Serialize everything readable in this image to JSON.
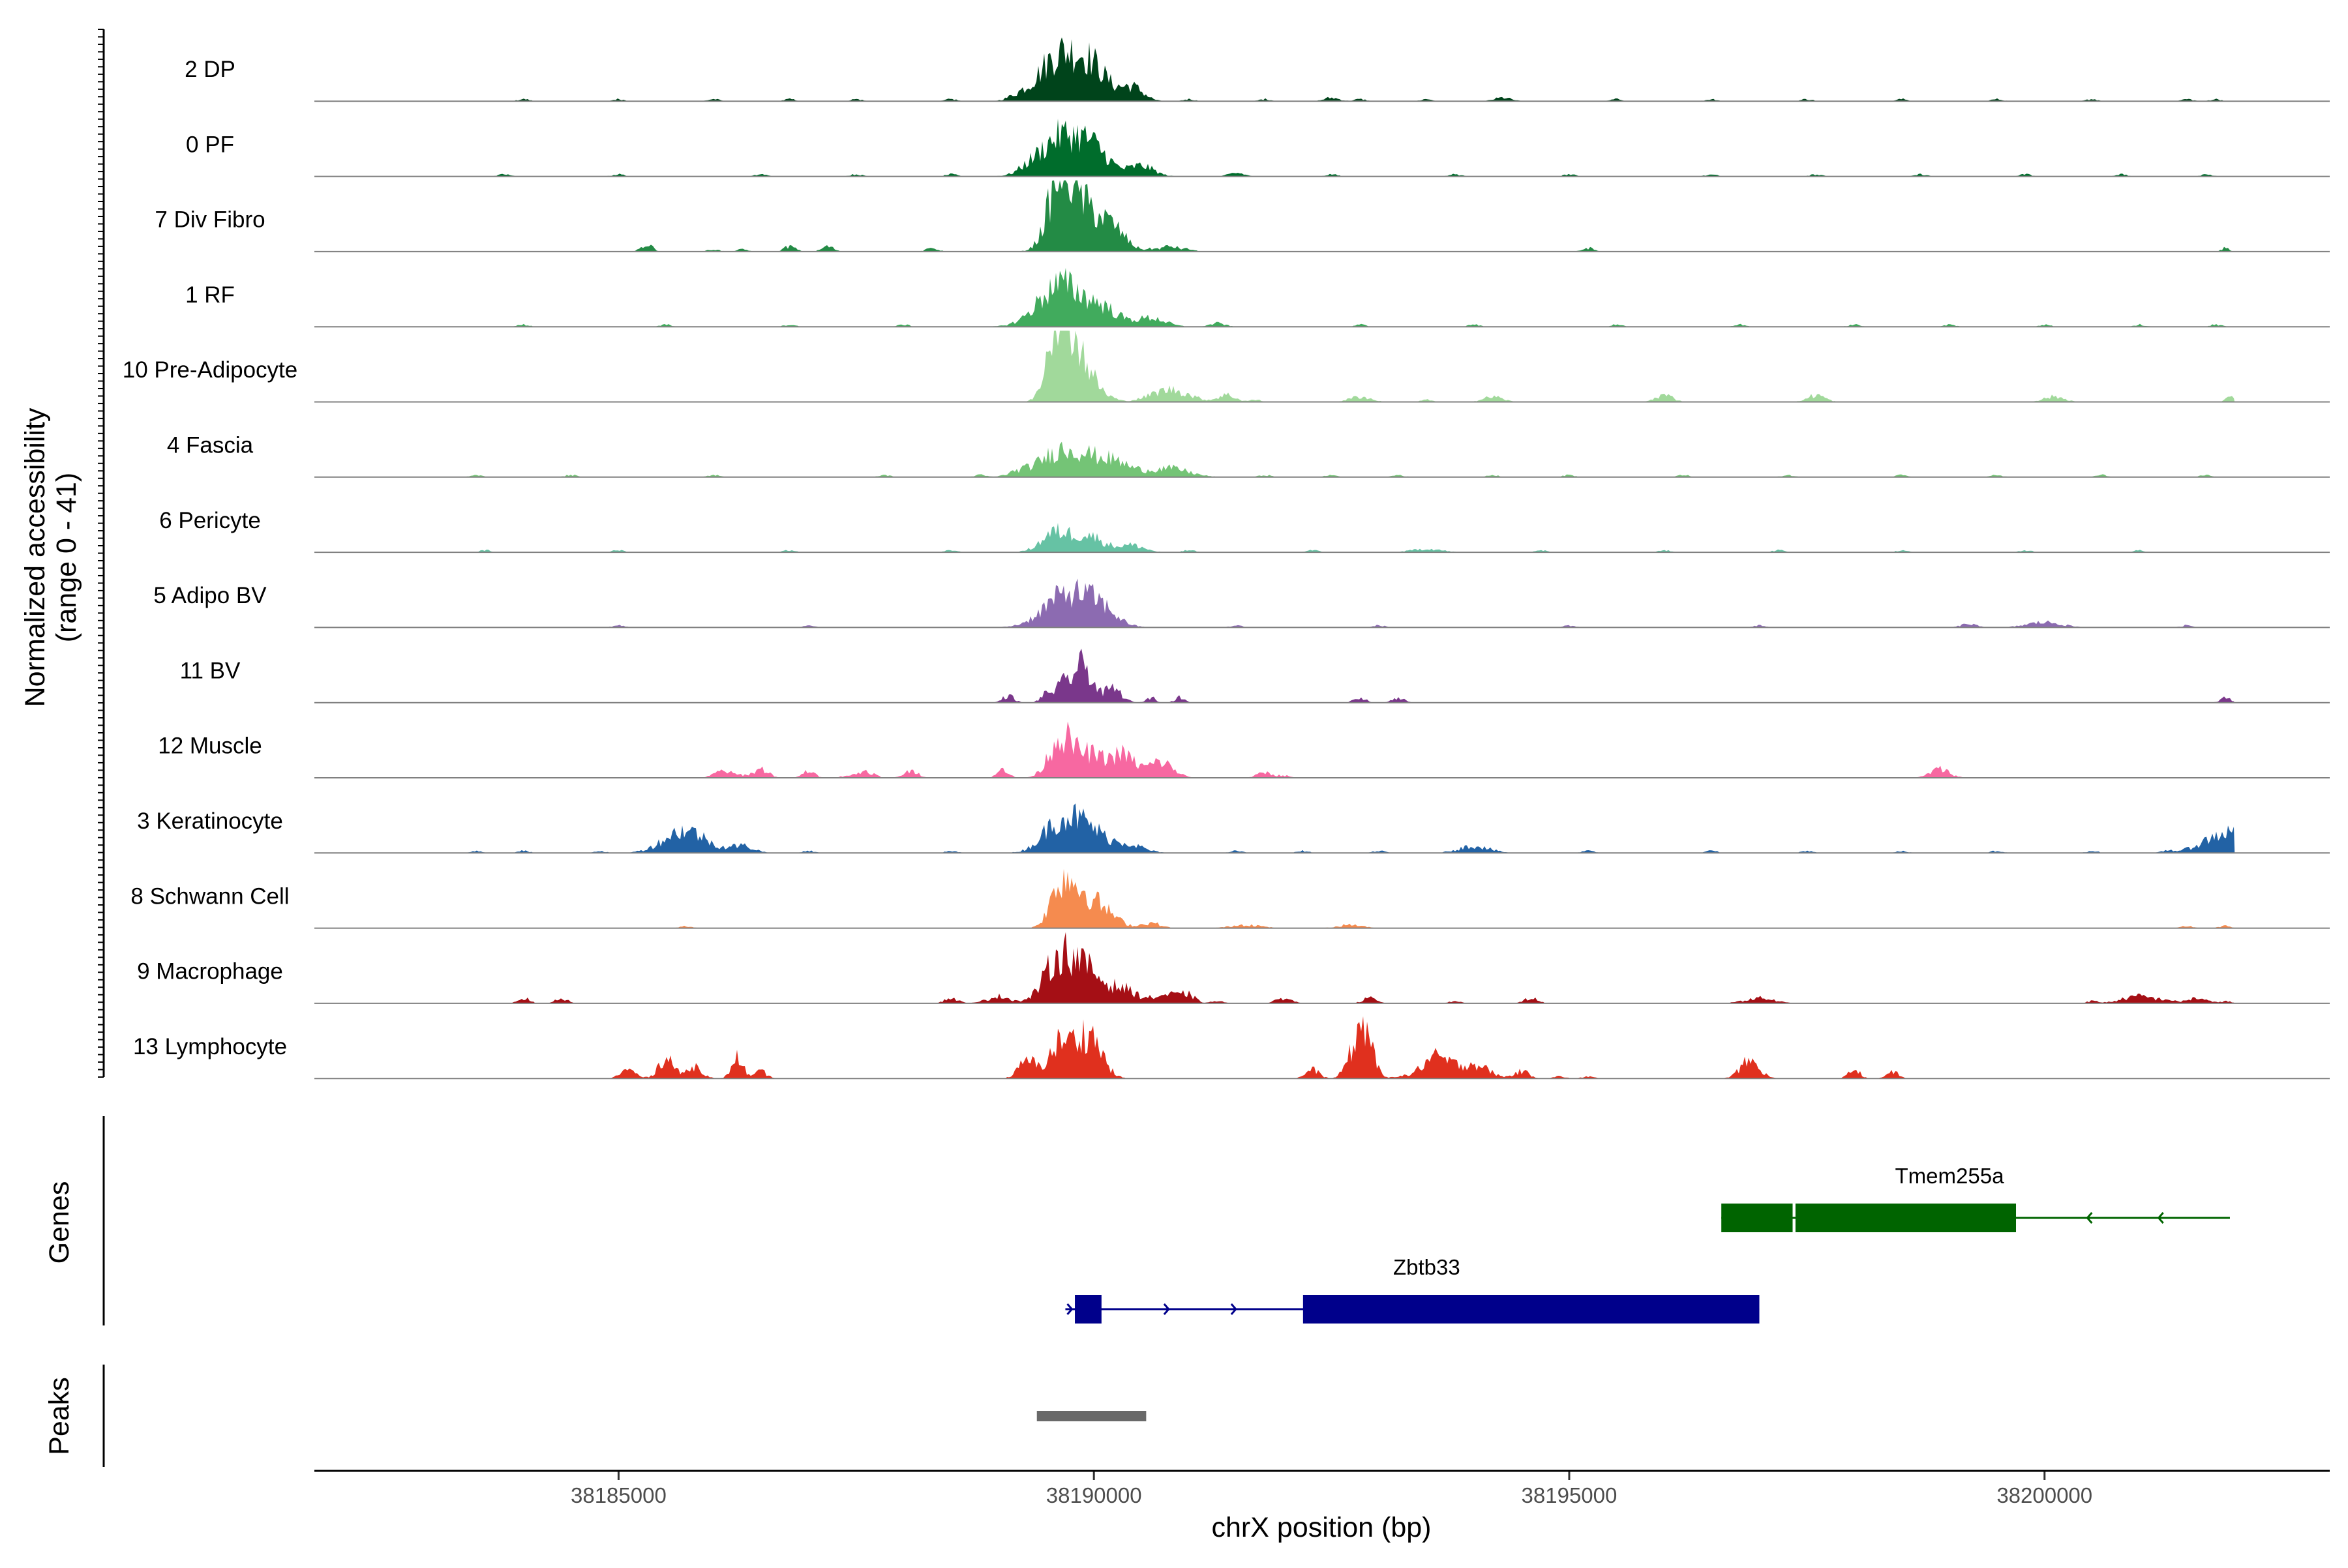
{
  "chart_data": {
    "type": "area",
    "subtype": "genome-coverage-tracks",
    "y_axis": {
      "title_line1": "Normalized accessibility",
      "title_line2": "(range 0 - 41)",
      "range": [
        0,
        41
      ]
    },
    "x_axis": {
      "title": "chrX position (bp)",
      "range": [
        38181800,
        38203000
      ],
      "ticks": [
        38185000,
        38190000,
        38195000,
        38200000
      ],
      "tick_labels": [
        "38185000",
        "38190000",
        "38195000",
        "38200000"
      ]
    },
    "baseline_color": "#808080",
    "tracks": [
      {
        "name": "2 DP",
        "color": "#00441b",
        "peaks": [
          [
            38189650,
            27,
            220
          ],
          [
            38190000,
            15,
            160
          ],
          [
            38190400,
            8,
            120
          ],
          [
            38189200,
            2,
            100
          ],
          [
            38192500,
            2,
            80
          ],
          [
            38194300,
            2,
            90
          ]
        ],
        "bumps": [
          [
            38184000,
            38185000,
            38186000,
            38186800,
            38187500,
            38188500,
            38191000,
            38191800,
            38192800,
            38193500,
            38195500,
            38196500,
            38197500,
            38198500,
            38199500,
            38200500,
            38201500,
            38201800
          ]
        ]
      },
      {
        "name": "0 PF",
        "color": "#006d2c",
        "peaks": [
          [
            38189650,
            22,
            220
          ],
          [
            38190000,
            13,
            170
          ],
          [
            38190500,
            6,
            130
          ],
          [
            38189300,
            2,
            100
          ],
          [
            38191500,
            2,
            80
          ]
        ],
        "bumps": [
          [
            38183800,
            38185000,
            38186500,
            38187500,
            38188500,
            38192500,
            38193800,
            38195000,
            38196500,
            38197600,
            38198700,
            38199800,
            38200800,
            38201700
          ]
        ]
      },
      {
        "name": "7 Div Fibro",
        "color": "#238b45",
        "peaks": [
          [
            38189650,
            40,
            130
          ],
          [
            38189900,
            22,
            160
          ],
          [
            38190200,
            12,
            140
          ],
          [
            38190800,
            3,
            90
          ],
          [
            38185300,
            4,
            60
          ],
          [
            38186800,
            3,
            60
          ],
          [
            38187200,
            3,
            60
          ],
          [
            38188300,
            2,
            60
          ],
          [
            38195200,
            2,
            60
          ],
          [
            38201900,
            2,
            40
          ]
        ],
        "bumps": [
          [
            38186000,
            38186300,
            38190600,
            38191000
          ]
        ]
      },
      {
        "name": "1 RF",
        "color": "#41ab5d",
        "peaks": [
          [
            38189650,
            24,
            230
          ],
          [
            38190100,
            9,
            170
          ],
          [
            38190600,
            5,
            150
          ],
          [
            38191300,
            2,
            80
          ]
        ],
        "bumps": [
          [
            38184000,
            38185500,
            38186800,
            38188000,
            38192800,
            38194000,
            38195500,
            38196800,
            38198000,
            38199000,
            38200000,
            38201000,
            38201800
          ]
        ]
      },
      {
        "name": "10 Pre-Adipocyte",
        "color": "#a1d99b",
        "peaks": [
          [
            38189600,
            41,
            100
          ],
          [
            38189750,
            32,
            120
          ],
          [
            38189950,
            12,
            120
          ],
          [
            38190800,
            7,
            200
          ],
          [
            38191400,
            4,
            90
          ],
          [
            38192800,
            3,
            110
          ],
          [
            38194200,
            3,
            100
          ],
          [
            38196000,
            4,
            90
          ],
          [
            38197600,
            4,
            90
          ],
          [
            38200100,
            3,
            110
          ],
          [
            38201950,
            3,
            40
          ]
        ],
        "bumps": [
          [
            38190200,
            38191700,
            38193500
          ]
        ]
      },
      {
        "name": "4 Fascia",
        "color": "#74c476",
        "peaks": [
          [
            38189700,
            16,
            250
          ],
          [
            38190200,
            8,
            200
          ],
          [
            38190800,
            5,
            200
          ],
          [
            38189200,
            2,
            100
          ]
        ],
        "bumps": [
          [
            38183500,
            38184500,
            38186000,
            38187800,
            38188800,
            38191800,
            38192500,
            38193200,
            38194200,
            38195000,
            38196200,
            38197300,
            38198500,
            38199500,
            38200600,
            38201700
          ]
        ]
      },
      {
        "name": "6 Pericyte",
        "color": "#66c2a4",
        "peaks": [
          [
            38189600,
            11,
            150
          ],
          [
            38189950,
            9,
            160
          ],
          [
            38190400,
            4,
            130
          ],
          [
            38193500,
            2,
            150
          ]
        ],
        "bumps": [
          [
            38183600,
            38185000,
            38186800,
            38188500,
            38191000,
            38192300,
            38194700,
            38196000,
            38197200,
            38198500,
            38199800,
            38201000
          ]
        ]
      },
      {
        "name": "5 Adipo BV",
        "color": "#8c6bb1",
        "peaks": [
          [
            38189700,
            18,
            230
          ],
          [
            38190050,
            10,
            180
          ],
          [
            38200000,
            3,
            180
          ],
          [
            38199200,
            2,
            80
          ]
        ],
        "bumps": [
          [
            38185000,
            38187000,
            38191500,
            38193000,
            38195000,
            38197000,
            38201500
          ]
        ]
      },
      {
        "name": "11 BV",
        "color": "#7a378b",
        "peaks": [
          [
            38189700,
            11,
            100
          ],
          [
            38189900,
            20,
            90
          ],
          [
            38190200,
            8,
            90
          ],
          [
            38189100,
            4,
            60
          ],
          [
            38189500,
            4,
            60
          ],
          [
            38190600,
            3,
            50
          ],
          [
            38190900,
            3,
            50
          ],
          [
            38192800,
            3,
            60
          ],
          [
            38193200,
            3,
            60
          ],
          [
            38201900,
            3,
            50
          ]
        ],
        "bumps": []
      },
      {
        "name": "12 Muscle",
        "color": "#f768a1",
        "peaks": [
          [
            38189650,
            23,
            120
          ],
          [
            38189950,
            13,
            140
          ],
          [
            38190300,
            13,
            130
          ],
          [
            38190700,
            9,
            130
          ],
          [
            38186100,
            4,
            90
          ],
          [
            38186500,
            5,
            80
          ],
          [
            38187000,
            4,
            60
          ],
          [
            38187600,
            4,
            80
          ],
          [
            38188100,
            4,
            60
          ],
          [
            38189050,
            5,
            60
          ],
          [
            38191800,
            3,
            80
          ],
          [
            38198900,
            5,
            100
          ]
        ],
        "bumps": [
          [
            38186300,
            38187400,
            38188000,
            38192000
          ]
        ]
      },
      {
        "name": "3 Keratinocyte",
        "color": "#2262a5",
        "peaks": [
          [
            38189650,
            18,
            180
          ],
          [
            38189950,
            12,
            170
          ],
          [
            38190350,
            5,
            160
          ],
          [
            38185700,
            13,
            220
          ],
          [
            38186300,
            4,
            120
          ],
          [
            38194000,
            4,
            160
          ],
          [
            38201950,
            12,
            250
          ]
        ],
        "bumps": [
          [
            38183500,
            38184000,
            38184800,
            38187000,
            38188500,
            38191500,
            38192200,
            38193000,
            38195200,
            38196500,
            38197500,
            38198500,
            38199500,
            38200500,
            38201300
          ]
        ]
      },
      {
        "name": "8 Schwann Cell",
        "color": "#f58b4f",
        "peaks": [
          [
            38189650,
            22,
            110
          ],
          [
            38189850,
            17,
            140
          ],
          [
            38190100,
            9,
            150
          ],
          [
            38190600,
            3,
            100
          ],
          [
            38191600,
            2,
            150
          ],
          [
            38192700,
            2,
            120
          ]
        ],
        "bumps": [
          [
            38185700,
            38201500,
            38201900
          ]
        ]
      },
      {
        "name": "9 Macrophage",
        "color": "#a50f15",
        "peaks": [
          [
            38189650,
            27,
            160
          ],
          [
            38189950,
            15,
            150
          ],
          [
            38190300,
            8,
            150
          ],
          [
            38190800,
            5,
            160
          ],
          [
            38189000,
            4,
            120
          ],
          [
            38184000,
            3,
            60
          ],
          [
            38184400,
            3,
            60
          ],
          [
            38188500,
            3,
            70
          ],
          [
            38191000,
            3,
            60
          ],
          [
            38192000,
            3,
            80
          ],
          [
            38192900,
            3,
            70
          ],
          [
            38194600,
            3,
            70
          ],
          [
            38197000,
            3,
            150
          ],
          [
            38201000,
            4,
            180
          ],
          [
            38201600,
            3,
            100
          ]
        ],
        "bumps": [
          [
            38191300,
            38193800,
            38200500,
            38201300,
            38201900
          ]
        ]
      },
      {
        "name": "13 Lymphocyte",
        "color": "#e0301e",
        "peaks": [
          [
            38189650,
            20,
            120
          ],
          [
            38189950,
            25,
            130
          ],
          [
            38189300,
            10,
            90
          ],
          [
            38192850,
            30,
            80
          ],
          [
            38192700,
            10,
            70
          ],
          [
            38185500,
            12,
            80
          ],
          [
            38186250,
            12,
            60
          ],
          [
            38185100,
            5,
            80
          ],
          [
            38185800,
            7,
            80
          ],
          [
            38186500,
            4,
            60
          ],
          [
            38192300,
            5,
            70
          ],
          [
            38193600,
            12,
            150
          ],
          [
            38194000,
            8,
            150
          ],
          [
            38194500,
            4,
            80
          ],
          [
            38196900,
            10,
            100
          ],
          [
            38198000,
            5,
            60
          ],
          [
            38198400,
            4,
            60
          ]
        ],
        "bumps": [
          [
            38193200,
            38194900,
            38195200
          ]
        ]
      }
    ],
    "genes_track_label": "Genes",
    "peaks_track_label": "Peaks",
    "genes": [
      {
        "name": "Tmem255a",
        "strand": "-",
        "color": "#006400",
        "start": 38196600,
        "end": 38201950,
        "exons": [
          [
            38196600,
            38197350
          ],
          [
            38197380,
            38199700
          ]
        ]
      },
      {
        "name": "Zbtb33",
        "strand": "+",
        "color": "#00008b",
        "start": 38189700,
        "end": 38197000,
        "exons": [
          [
            38189800,
            38190080
          ],
          [
            38192200,
            38197000
          ]
        ]
      }
    ],
    "peak_regions": [
      [
        38189400,
        38190550
      ]
    ],
    "peak_color": "#696969"
  }
}
